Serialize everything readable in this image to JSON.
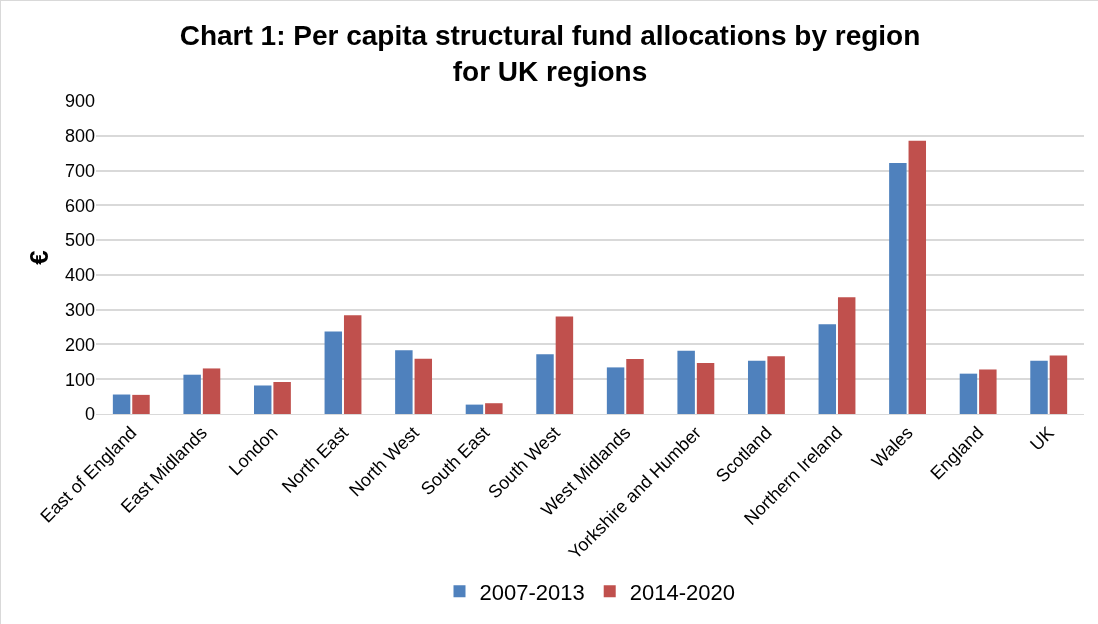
{
  "chart_data": {
    "type": "bar",
    "title": "Chart 1: Per capita structural fund allocations by region\nfor UK regions",
    "ylabel": "€",
    "categories": [
      "East of England",
      "East Midlands",
      "London",
      "North East",
      "North West",
      "South East",
      "South West",
      "West Midlands",
      "Yorkshire and Humber",
      "Scotland",
      "Northern Ireland",
      "Wales",
      "England",
      "UK"
    ],
    "series": [
      {
        "name": "2007-2013",
        "color": "#4f81bd",
        "values": [
          56,
          113,
          82,
          237,
          183,
          27,
          172,
          134,
          182,
          153,
          258,
          722,
          116,
          153
        ]
      },
      {
        "name": "2014-2020",
        "color": "#c0504d",
        "values": [
          55,
          131,
          92,
          284,
          159,
          31,
          280,
          158,
          147,
          166,
          336,
          786,
          128,
          168
        ]
      }
    ],
    "ylim": [
      0,
      900
    ],
    "yticks": [
      0,
      100,
      200,
      300,
      400,
      500,
      600,
      700,
      800,
      900
    ],
    "grid": "y",
    "legend": "bottom"
  }
}
